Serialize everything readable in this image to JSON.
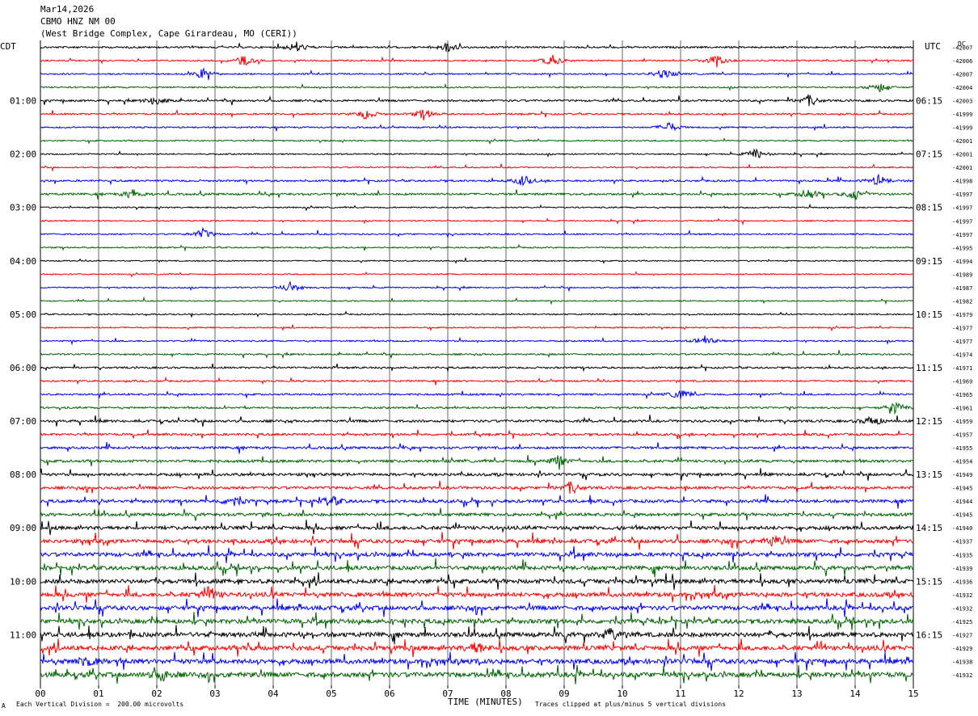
{
  "header": {
    "date": "Mar14,2026",
    "station": "CBMO HNZ NM 00",
    "location": "(West Bridge Complex, Cape Girardeau, MO (CERI))"
  },
  "left_axis_label": "CDT",
  "right_axis_label": "UTC",
  "dc_label": "DC",
  "footer": {
    "scale_note": "Each Vertical Division =  200.00 microvolts",
    "x_title": "TIME (MINUTES)",
    "clip_note": "Traces clipped at plus/minus 5 vertical divisions"
  },
  "colors": {
    "trace_cycle": [
      "#000000",
      "#ff0000",
      "#0000ff",
      "#006400"
    ],
    "grid": "#000000"
  },
  "chart_data": {
    "type": "line",
    "xlabel": "TIME (MINUTES)",
    "xlim": [
      0,
      15
    ],
    "x_ticks": [
      "00",
      "01",
      "02",
      "03",
      "04",
      "05",
      "06",
      "07",
      "08",
      "09",
      "10",
      "11",
      "12",
      "13",
      "14",
      "15"
    ],
    "trace_count": 48,
    "left_hour_labels": [
      {
        "row": 4,
        "label": "01:00"
      },
      {
        "row": 8,
        "label": "02:00"
      },
      {
        "row": 12,
        "label": "03:00"
      },
      {
        "row": 16,
        "label": "04:00"
      },
      {
        "row": 20,
        "label": "05:00"
      },
      {
        "row": 24,
        "label": "06:00"
      },
      {
        "row": 28,
        "label": "07:00"
      },
      {
        "row": 32,
        "label": "08:00"
      },
      {
        "row": 36,
        "label": "09:00"
      },
      {
        "row": 40,
        "label": "10:00"
      },
      {
        "row": 44,
        "label": "11:00"
      }
    ],
    "right_hour_labels": [
      {
        "row": 4,
        "label": "06:15"
      },
      {
        "row": 8,
        "label": "07:15"
      },
      {
        "row": 12,
        "label": "08:15"
      },
      {
        "row": 16,
        "label": "09:15"
      },
      {
        "row": 20,
        "label": "10:15"
      },
      {
        "row": 24,
        "label": "11:15"
      },
      {
        "row": 28,
        "label": "12:15"
      },
      {
        "row": 32,
        "label": "13:15"
      },
      {
        "row": 36,
        "label": "14:15"
      },
      {
        "row": 40,
        "label": "15:15"
      },
      {
        "row": 44,
        "label": "16:15"
      }
    ],
    "dc_offsets": [
      "-42007",
      "-42006",
      "-42007",
      "-42004",
      "-42003",
      "-41999",
      "-41999",
      "-42001",
      "-42001",
      "-42001",
      "-41998",
      "-41997",
      "-41997",
      "-41997",
      "-41997",
      "-41995",
      "-41994",
      "-41989",
      "-41987",
      "-41982",
      "-41979",
      "-41977",
      "-41977",
      "-41974",
      "-41971",
      "-41969",
      "-41965",
      "-41961",
      "-41959",
      "-41957",
      "-41955",
      "-41954",
      "-41949",
      "-41945",
      "-41944",
      "-41945",
      "-41940",
      "-41937",
      "-41935",
      "-41939",
      "-41936",
      "-41932",
      "-41932",
      "-41925",
      "-41927",
      "-41929",
      "-41938",
      "-41932"
    ],
    "trace_activity": [
      1.2,
      1.0,
      1.0,
      1.0,
      1.3,
      1.1,
      1.0,
      0.9,
      0.9,
      0.9,
      1.2,
      1.4,
      0.9,
      0.9,
      1.0,
      0.9,
      0.8,
      0.8,
      0.9,
      0.8,
      0.9,
      0.9,
      1.0,
      1.1,
      1.2,
      1.1,
      1.2,
      1.2,
      1.6,
      1.5,
      1.6,
      1.7,
      1.8,
      1.8,
      2.0,
      2.0,
      2.3,
      2.5,
      2.6,
      2.6,
      2.8,
      2.8,
      2.8,
      2.9,
      3.0,
      3.0,
      3.1,
      3.2
    ],
    "events": [
      {
        "row": 0,
        "minute": 4.4
      },
      {
        "row": 0,
        "minute": 7.0
      },
      {
        "row": 1,
        "minute": 3.5
      },
      {
        "row": 1,
        "minute": 8.8
      },
      {
        "row": 1,
        "minute": 11.6
      },
      {
        "row": 2,
        "minute": 2.8
      },
      {
        "row": 2,
        "minute": 10.7
      },
      {
        "row": 3,
        "minute": 14.4
      },
      {
        "row": 4,
        "minute": 2.0
      },
      {
        "row": 4,
        "minute": 13.2
      },
      {
        "row": 5,
        "minute": 5.6
      },
      {
        "row": 5,
        "minute": 6.6
      },
      {
        "row": 6,
        "minute": 10.8
      },
      {
        "row": 8,
        "minute": 12.3
      },
      {
        "row": 10,
        "minute": 8.3
      },
      {
        "row": 10,
        "minute": 14.4
      },
      {
        "row": 11,
        "minute": 1.6
      },
      {
        "row": 11,
        "minute": 13.2
      },
      {
        "row": 11,
        "minute": 14.0
      },
      {
        "row": 14,
        "minute": 2.8
      },
      {
        "row": 18,
        "minute": 4.3
      },
      {
        "row": 22,
        "minute": 11.4
      },
      {
        "row": 26,
        "minute": 11.0
      },
      {
        "row": 27,
        "minute": 14.7
      },
      {
        "row": 28,
        "minute": 14.3
      },
      {
        "row": 31,
        "minute": 8.9
      },
      {
        "row": 33,
        "minute": 9.1
      },
      {
        "row": 34,
        "minute": 3.3
      },
      {
        "row": 34,
        "minute": 5.0
      },
      {
        "row": 37,
        "minute": 12.6
      },
      {
        "row": 41,
        "minute": 2.9
      },
      {
        "row": 44,
        "minute": 9.8
      },
      {
        "row": 45,
        "minute": 7.5
      },
      {
        "row": 46,
        "minute": 0.8
      },
      {
        "row": 47,
        "minute": 2.1
      }
    ]
  }
}
